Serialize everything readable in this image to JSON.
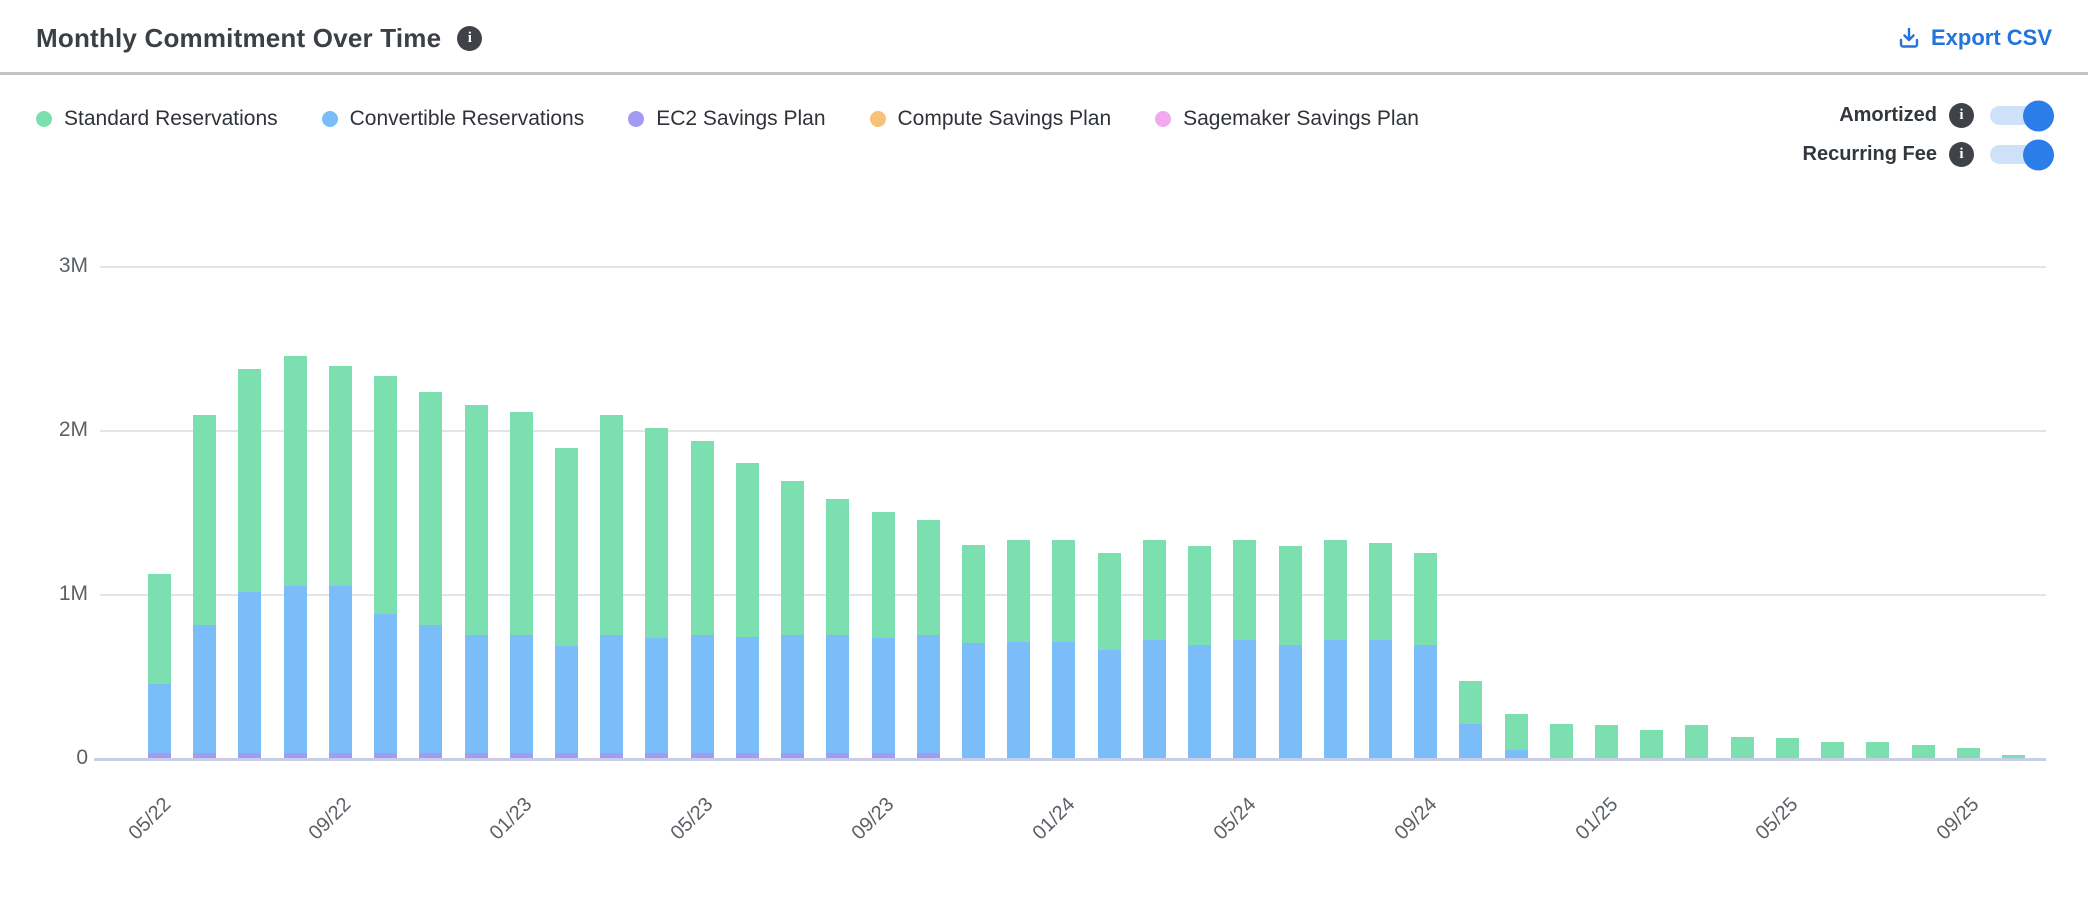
{
  "header": {
    "title": "Monthly Commitment Over Time",
    "export_label": "Export CSV"
  },
  "controls": {
    "amortized": {
      "label": "Amortized",
      "state": "on"
    },
    "recurring_fee": {
      "label": "Recurring Fee",
      "state": "on"
    }
  },
  "colors": {
    "accent_blue": "#2173de",
    "toggle_on": "#2b7de9",
    "toggle_track": "#cde1f9",
    "info_icon_bg": "#3f4347",
    "gridline": "#e5e5e8",
    "axis_line": "#c8cee6"
  },
  "chart_data": {
    "type": "bar",
    "stacked": true,
    "title": "Monthly Commitment Over Time",
    "xlabel": "",
    "ylabel": "",
    "unit": "M",
    "ylim": [
      0,
      3
    ],
    "grid": true,
    "legend_position": "top-left",
    "y_ticks": [
      "0",
      "1M",
      "2M",
      "3M"
    ],
    "x": [
      "05/22",
      "06/22",
      "07/22",
      "08/22",
      "09/22",
      "10/22",
      "11/22",
      "12/22",
      "01/23",
      "02/23",
      "03/23",
      "04/23",
      "05/23",
      "06/23",
      "07/23",
      "08/23",
      "09/23",
      "10/23",
      "11/23",
      "12/23",
      "01/24",
      "02/24",
      "03/24",
      "04/24",
      "05/24",
      "06/24",
      "07/24",
      "08/24",
      "09/24",
      "10/24",
      "11/24",
      "12/24",
      "01/25",
      "02/25",
      "03/25",
      "04/25",
      "05/25",
      "06/25",
      "07/25",
      "08/25",
      "09/25",
      "10/25"
    ],
    "x_tick_labels": [
      "05/22",
      "09/22",
      "01/23",
      "05/23",
      "09/23",
      "01/24",
      "05/24",
      "09/24",
      "01/25",
      "05/25",
      "09/25"
    ],
    "x_tick_every": 4,
    "stack_order": [
      "EC2 Savings Plan",
      "Compute Savings Plan",
      "Sagemaker Savings Plan",
      "Convertible Reservations",
      "Standard Reservations"
    ],
    "series": [
      {
        "name": "Standard Reservations",
        "color": "#7cdfb0",
        "values": [
          0.67,
          1.28,
          1.36,
          1.4,
          1.34,
          1.45,
          1.42,
          1.4,
          1.36,
          1.21,
          1.34,
          1.28,
          1.18,
          1.06,
          0.94,
          0.83,
          0.77,
          0.7,
          0.6,
          0.62,
          0.62,
          0.59,
          0.61,
          0.6,
          0.61,
          0.6,
          0.61,
          0.59,
          0.56,
          0.26,
          0.22,
          0.21,
          0.2,
          0.17,
          0.2,
          0.13,
          0.12,
          0.1,
          0.1,
          0.08,
          0.06,
          0.02
        ]
      },
      {
        "name": "Convertible Reservations",
        "color": "#7abdf9",
        "values": [
          0.42,
          0.78,
          0.98,
          1.02,
          1.02,
          0.85,
          0.78,
          0.72,
          0.72,
          0.65,
          0.72,
          0.7,
          0.72,
          0.71,
          0.72,
          0.72,
          0.7,
          0.72,
          0.7,
          0.71,
          0.71,
          0.66,
          0.72,
          0.69,
          0.72,
          0.69,
          0.72,
          0.72,
          0.69,
          0.21,
          0.05,
          0,
          0,
          0,
          0,
          0,
          0,
          0,
          0,
          0,
          0,
          0
        ]
      },
      {
        "name": "EC2 Savings Plan",
        "color": "#a39bf2",
        "values": [
          0.03,
          0.03,
          0.03,
          0.03,
          0.03,
          0.03,
          0.03,
          0.03,
          0.03,
          0.03,
          0.03,
          0.03,
          0.03,
          0.03,
          0.03,
          0.03,
          0.03,
          0.03,
          0,
          0,
          0,
          0,
          0,
          0,
          0,
          0,
          0,
          0,
          0,
          0,
          0,
          0,
          0,
          0,
          0,
          0,
          0,
          0,
          0,
          0,
          0,
          0
        ]
      },
      {
        "name": "Compute Savings Plan",
        "color": "#f6c178",
        "values": [
          0,
          0,
          0,
          0,
          0,
          0,
          0,
          0,
          0,
          0,
          0,
          0,
          0,
          0,
          0,
          0,
          0,
          0,
          0,
          0,
          0,
          0,
          0,
          0,
          0,
          0,
          0,
          0,
          0,
          0,
          0,
          0,
          0,
          0,
          0,
          0,
          0,
          0,
          0,
          0,
          0,
          0
        ]
      },
      {
        "name": "Sagemaker Savings Plan",
        "color": "#f2a9ef",
        "values": [
          0,
          0,
          0,
          0,
          0,
          0,
          0,
          0,
          0,
          0,
          0,
          0,
          0,
          0,
          0,
          0,
          0,
          0,
          0,
          0,
          0,
          0,
          0,
          0,
          0,
          0,
          0,
          0,
          0,
          0,
          0,
          0,
          0,
          0,
          0,
          0,
          0,
          0,
          0,
          0,
          0,
          0
        ]
      }
    ]
  }
}
